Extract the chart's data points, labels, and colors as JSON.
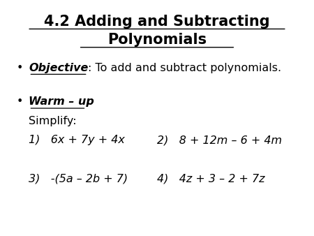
{
  "title_line1": "4.2 Adding and Subtracting",
  "title_line2": "Polynomials",
  "background_color": "#ffffff",
  "text_color": "#000000",
  "bullet": "•",
  "objective_label": "Objective",
  "objective_text": ": To add and subtract polynomials.",
  "warmup_label": "Warm – up",
  "warmup_colon": ":",
  "simplify": "Simplify:",
  "prob1": "1)   6x + 7y + 4x",
  "prob2": "2)   8 + 12m – 6 + 4m",
  "prob3": "3)   -(5a – 2b + 7)",
  "prob4": "4)   4z + 3 – 2 + 7z",
  "title_fontsize": 15,
  "body_fontsize": 11.5
}
